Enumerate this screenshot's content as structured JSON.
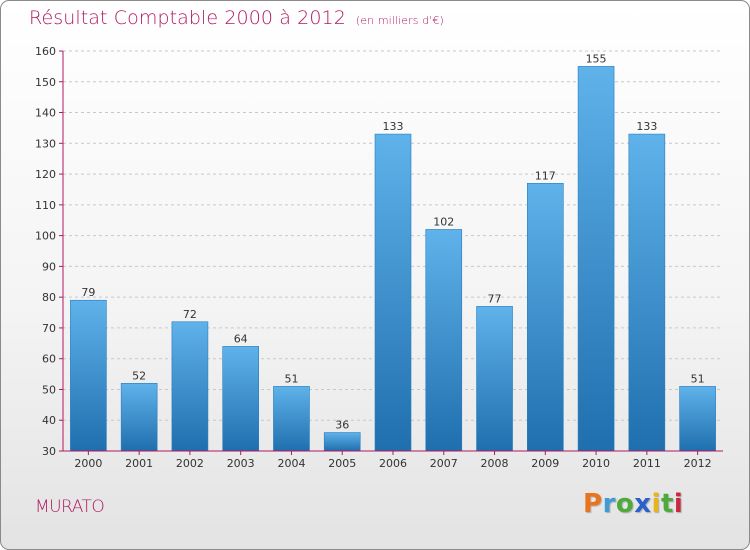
{
  "title": "Résultat Comptable 2000 à 2012",
  "subtitle": "(en milliers d'€)",
  "commune": "MURATO",
  "logo": {
    "letters": [
      "P",
      "r",
      "o",
      "x",
      "i",
      "t",
      "i"
    ],
    "colors": [
      "#e8741c",
      "#3f9bd6",
      "#4faa3c",
      "#2a62c9",
      "#e8b41c",
      "#4faa3c",
      "#c9283f"
    ]
  },
  "colors": {
    "bar": "#3d95d8",
    "bar_light": "#5fb2ea",
    "bar_dark": "#1f6fae",
    "axis": "#b0185f",
    "title": "#b0185f"
  },
  "chart_data": {
    "type": "bar",
    "categories": [
      "2000",
      "2001",
      "2002",
      "2003",
      "2004",
      "2005",
      "2006",
      "2007",
      "2008",
      "2009",
      "2010",
      "2011",
      "2012"
    ],
    "values": [
      79,
      52,
      72,
      64,
      51,
      36,
      133,
      102,
      77,
      117,
      155,
      133,
      51
    ],
    "ylim": [
      30,
      160
    ],
    "yticks": [
      30,
      40,
      50,
      60,
      70,
      80,
      90,
      100,
      110,
      120,
      130,
      140,
      150,
      160
    ],
    "grid": true,
    "xlabel": "",
    "ylabel": ""
  }
}
